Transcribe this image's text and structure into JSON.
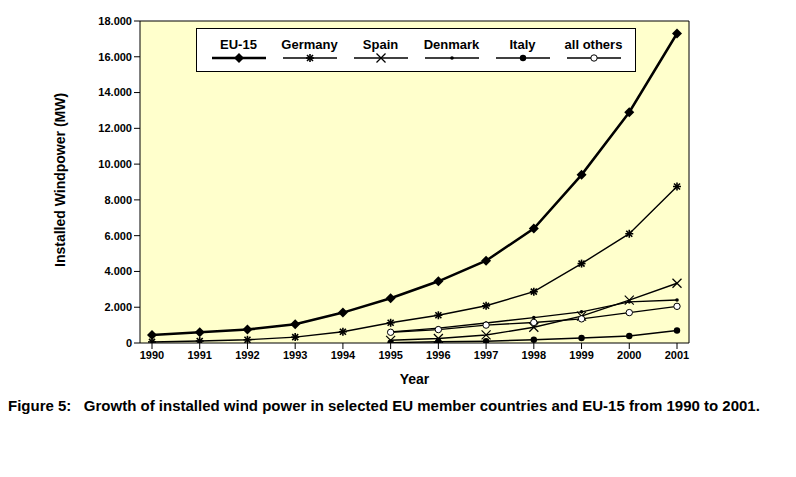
{
  "chart_data": {
    "type": "line",
    "caption": "Figure 5:   Growth of installed wind power in selected EU member countries and EU-15 from 1990 to 2001.",
    "x_label": "Year",
    "y_label": "Installed Windpower (MW)",
    "categories": [
      "1990",
      "1991",
      "1992",
      "1993",
      "1994",
      "1995",
      "1996",
      "1997",
      "1998",
      "1999",
      "2000",
      "2001"
    ],
    "ylim": [
      0,
      18000
    ],
    "yticks": [
      0,
      {
        "value": 2000,
        "label": "2.000"
      },
      {
        "value": 4000,
        "label": "4.000"
      },
      {
        "value": 6000,
        "label": "6.000"
      },
      {
        "value": 8000,
        "label": "8.000"
      },
      {
        "value": 10000,
        "label": "10.000"
      },
      {
        "value": 12000,
        "label": "12.000"
      },
      {
        "value": 14000,
        "label": "14.000"
      },
      {
        "value": 16000,
        "label": "16.000"
      },
      {
        "value": 18000,
        "label": "18.000"
      }
    ],
    "grid": false,
    "legend": "top",
    "series": [
      {
        "name": "EU-15",
        "color": "#000000",
        "marker": "diamond",
        "values": [
          450,
          600,
          750,
          1050,
          1700,
          2500,
          3450,
          4600,
          6400,
          9400,
          12900,
          17300
        ]
      },
      {
        "name": "Germany",
        "color": "#000000",
        "marker": "star",
        "values": [
          60,
          110,
          180,
          330,
          630,
          1130,
          1550,
          2080,
          2870,
          4440,
          6110,
          8750
        ]
      },
      {
        "name": "Spain",
        "color": "#000000",
        "marker": "x",
        "values": [
          null,
          null,
          null,
          null,
          null,
          150,
          250,
          450,
          880,
          1500,
          2400,
          3340
        ]
      },
      {
        "name": "Denmark",
        "color": "#000000",
        "marker": "point",
        "values": [
          null,
          null,
          null,
          null,
          null,
          620,
          830,
          1120,
          1420,
          1740,
          2300,
          2400
        ]
      },
      {
        "name": "Italy",
        "color": "#000000",
        "marker": "circle",
        "values": [
          null,
          null,
          null,
          null,
          null,
          20,
          70,
          100,
          180,
          280,
          390,
          700
        ]
      },
      {
        "name": "all others",
        "color": "#000000",
        "marker": "open_circle",
        "values": [
          null,
          null,
          null,
          null,
          null,
          600,
          750,
          1000,
          1150,
          1350,
          1700,
          2050
        ]
      }
    ]
  }
}
